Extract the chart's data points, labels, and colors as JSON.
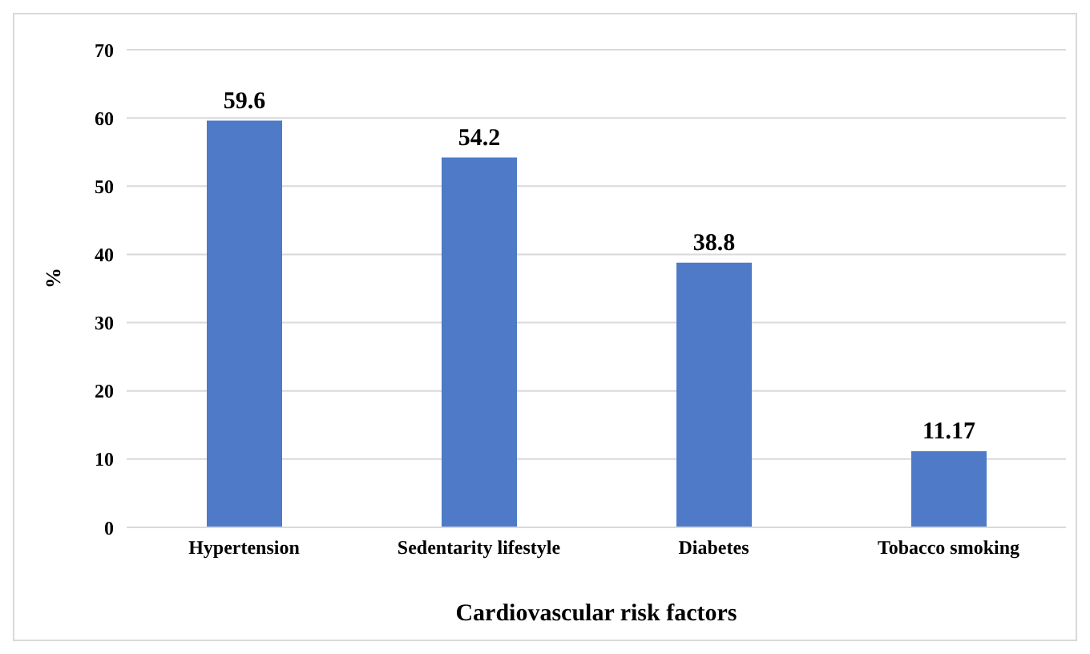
{
  "chart_data": {
    "type": "bar",
    "xlabel": "Cardiovascular risk factors",
    "ylabel": "%",
    "categories": [
      "Hypertension",
      "Sedentarity lifestyle",
      "Diabetes",
      "Tobacco smoking"
    ],
    "values": [
      59.6,
      54.2,
      38.8,
      11.17
    ],
    "color": "#4e7ac7",
    "ylim": [
      0,
      70
    ],
    "yticks": [
      0,
      10,
      20,
      30,
      40,
      50,
      60,
      70
    ],
    "grid": "y",
    "data_labels": true
  }
}
